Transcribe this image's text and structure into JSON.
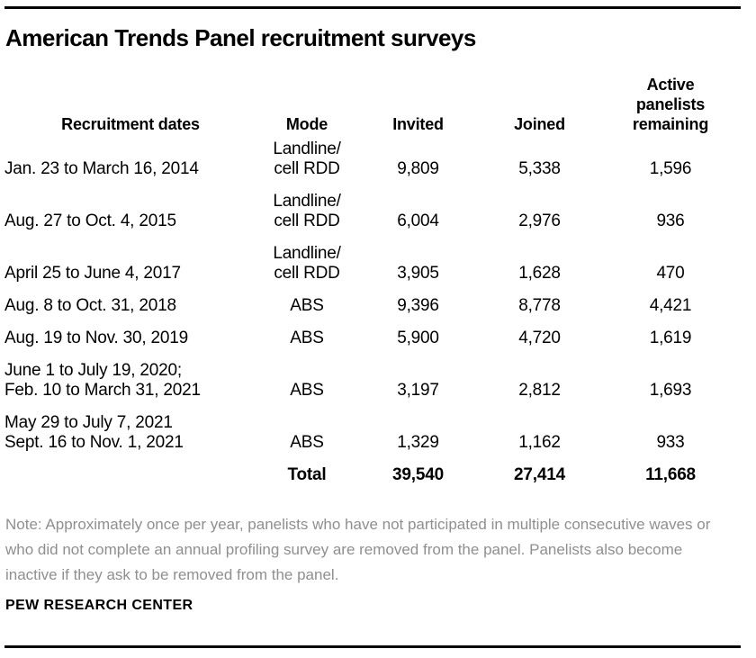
{
  "title": "American Trends Panel recruitment surveys",
  "header": {
    "dates": "Recruitment dates",
    "mode": "Mode",
    "invited": "Invited",
    "joined": "Joined",
    "active": "Active panelists remaining"
  },
  "rows": [
    {
      "date_line1": "Jan. 23 to March 16, 2014",
      "date_line2": "",
      "mode_line1": "Landline/",
      "mode_line2": "cell RDD",
      "invited": "9,809",
      "joined": "5,338",
      "active": "1,596"
    },
    {
      "date_line1": "Aug. 27 to Oct. 4, 2015",
      "date_line2": "",
      "mode_line1": "Landline/",
      "mode_line2": "cell RDD",
      "invited": "6,004",
      "joined": "2,976",
      "active": "936"
    },
    {
      "date_line1": "April 25 to June 4, 2017",
      "date_line2": "",
      "mode_line1": "Landline/",
      "mode_line2": "cell RDD",
      "invited": "3,905",
      "joined": "1,628",
      "active": "470"
    },
    {
      "date_line1": "Aug. 8 to Oct. 31, 2018",
      "date_line2": "",
      "mode_line1": "ABS",
      "mode_line2": "",
      "invited": "9,396",
      "joined": "8,778",
      "active": "4,421"
    },
    {
      "date_line1": "Aug. 19 to Nov. 30, 2019",
      "date_line2": "",
      "mode_line1": "ABS",
      "mode_line2": "",
      "invited": "5,900",
      "joined": "4,720",
      "active": "1,619"
    },
    {
      "date_line1": "June 1 to July 19, 2020;",
      "date_line2": "Feb. 10 to March 31, 2021",
      "mode_line1": "ABS",
      "mode_line2": "",
      "invited": "3,197",
      "joined": "2,812",
      "active": "1,693"
    },
    {
      "date_line1": "May 29 to July 7, 2021",
      "date_line2": "Sept. 16 to Nov. 1, 2021",
      "mode_line1": "ABS",
      "mode_line2": "",
      "invited": "1,329",
      "joined": "1,162",
      "active": "933"
    }
  ],
  "total": {
    "label": "Total",
    "invited": "39,540",
    "joined": "27,414",
    "active": "11,668"
  },
  "note": "Note: Approximately once per year, panelists who have not participated in multiple consecutive waves or who did not complete an annual profiling survey are removed from the panel. Panelists also become inactive if they ask to be removed from the panel.",
  "source": "PEW RESEARCH CENTER",
  "colors": {
    "text": "#000000",
    "note_gray": "#8f8f8f",
    "rule": "#000000",
    "background": "#ffffff"
  },
  "chart_data": {
    "type": "table",
    "title": "American Trends Panel recruitment surveys",
    "columns": [
      "Recruitment dates",
      "Mode",
      "Invited",
      "Joined",
      "Active panelists remaining"
    ],
    "rows": [
      [
        "Jan. 23 to March 16, 2014",
        "Landline/cell RDD",
        9809,
        5338,
        1596
      ],
      [
        "Aug. 27 to Oct. 4, 2015",
        "Landline/cell RDD",
        6004,
        2976,
        936
      ],
      [
        "April 25 to June 4, 2017",
        "Landline/cell RDD",
        3905,
        1628,
        470
      ],
      [
        "Aug. 8 to Oct. 31, 2018",
        "ABS",
        9396,
        8778,
        4421
      ],
      [
        "Aug. 19 to Nov. 30, 2019",
        "ABS",
        5900,
        4720,
        1619
      ],
      [
        "June 1 to July 19, 2020; Feb. 10 to March 31, 2021",
        "ABS",
        3197,
        2812,
        1693
      ],
      [
        "May 29 to July 7, 2021; Sept. 16 to Nov. 1, 2021",
        "ABS",
        1329,
        1162,
        933
      ]
    ],
    "total_row": [
      "Total",
      39540,
      27414,
      11668
    ],
    "note": "Note: Approximately once per year, panelists who have not participated in multiple consecutive waves or who did not complete an annual profiling survey are removed from the panel. Panelists also become inactive if they ask to be removed from the panel.",
    "source": "PEW RESEARCH CENTER"
  }
}
